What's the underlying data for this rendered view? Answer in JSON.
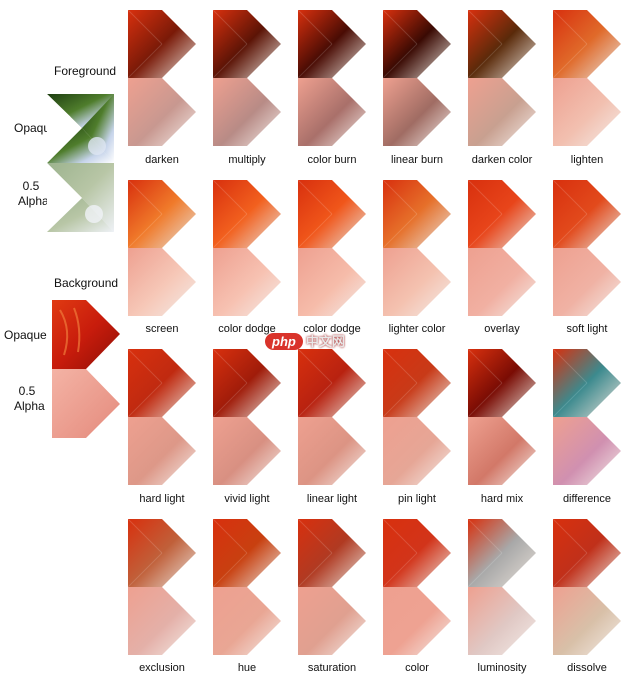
{
  "labels": {
    "foreground": "Foreground",
    "background": "Background",
    "opaque": "Opaque",
    "half_alpha_line1": "0.5",
    "half_alpha_line2": "Alpha"
  },
  "blend_modes": [
    "darken",
    "multiply",
    "color burn",
    "linear burn",
    "darken color",
    "lighten",
    "screen",
    "color dodge",
    "color dodge",
    "lighter color",
    "overlay",
    "soft light",
    "hard light",
    "vivid light",
    "linear light",
    "pin light",
    "hard mix",
    "difference",
    "exclusion",
    "hue",
    "saturation",
    "color",
    "luminosity",
    "dissolve"
  ],
  "watermark": {
    "badge": "php",
    "text": "中文网"
  },
  "colors": {
    "foreground_top": "#2f5e1c",
    "foreground_bottom": "#c9d8e8",
    "background": "#d0200f",
    "background_half": "#ec9a8c"
  }
}
